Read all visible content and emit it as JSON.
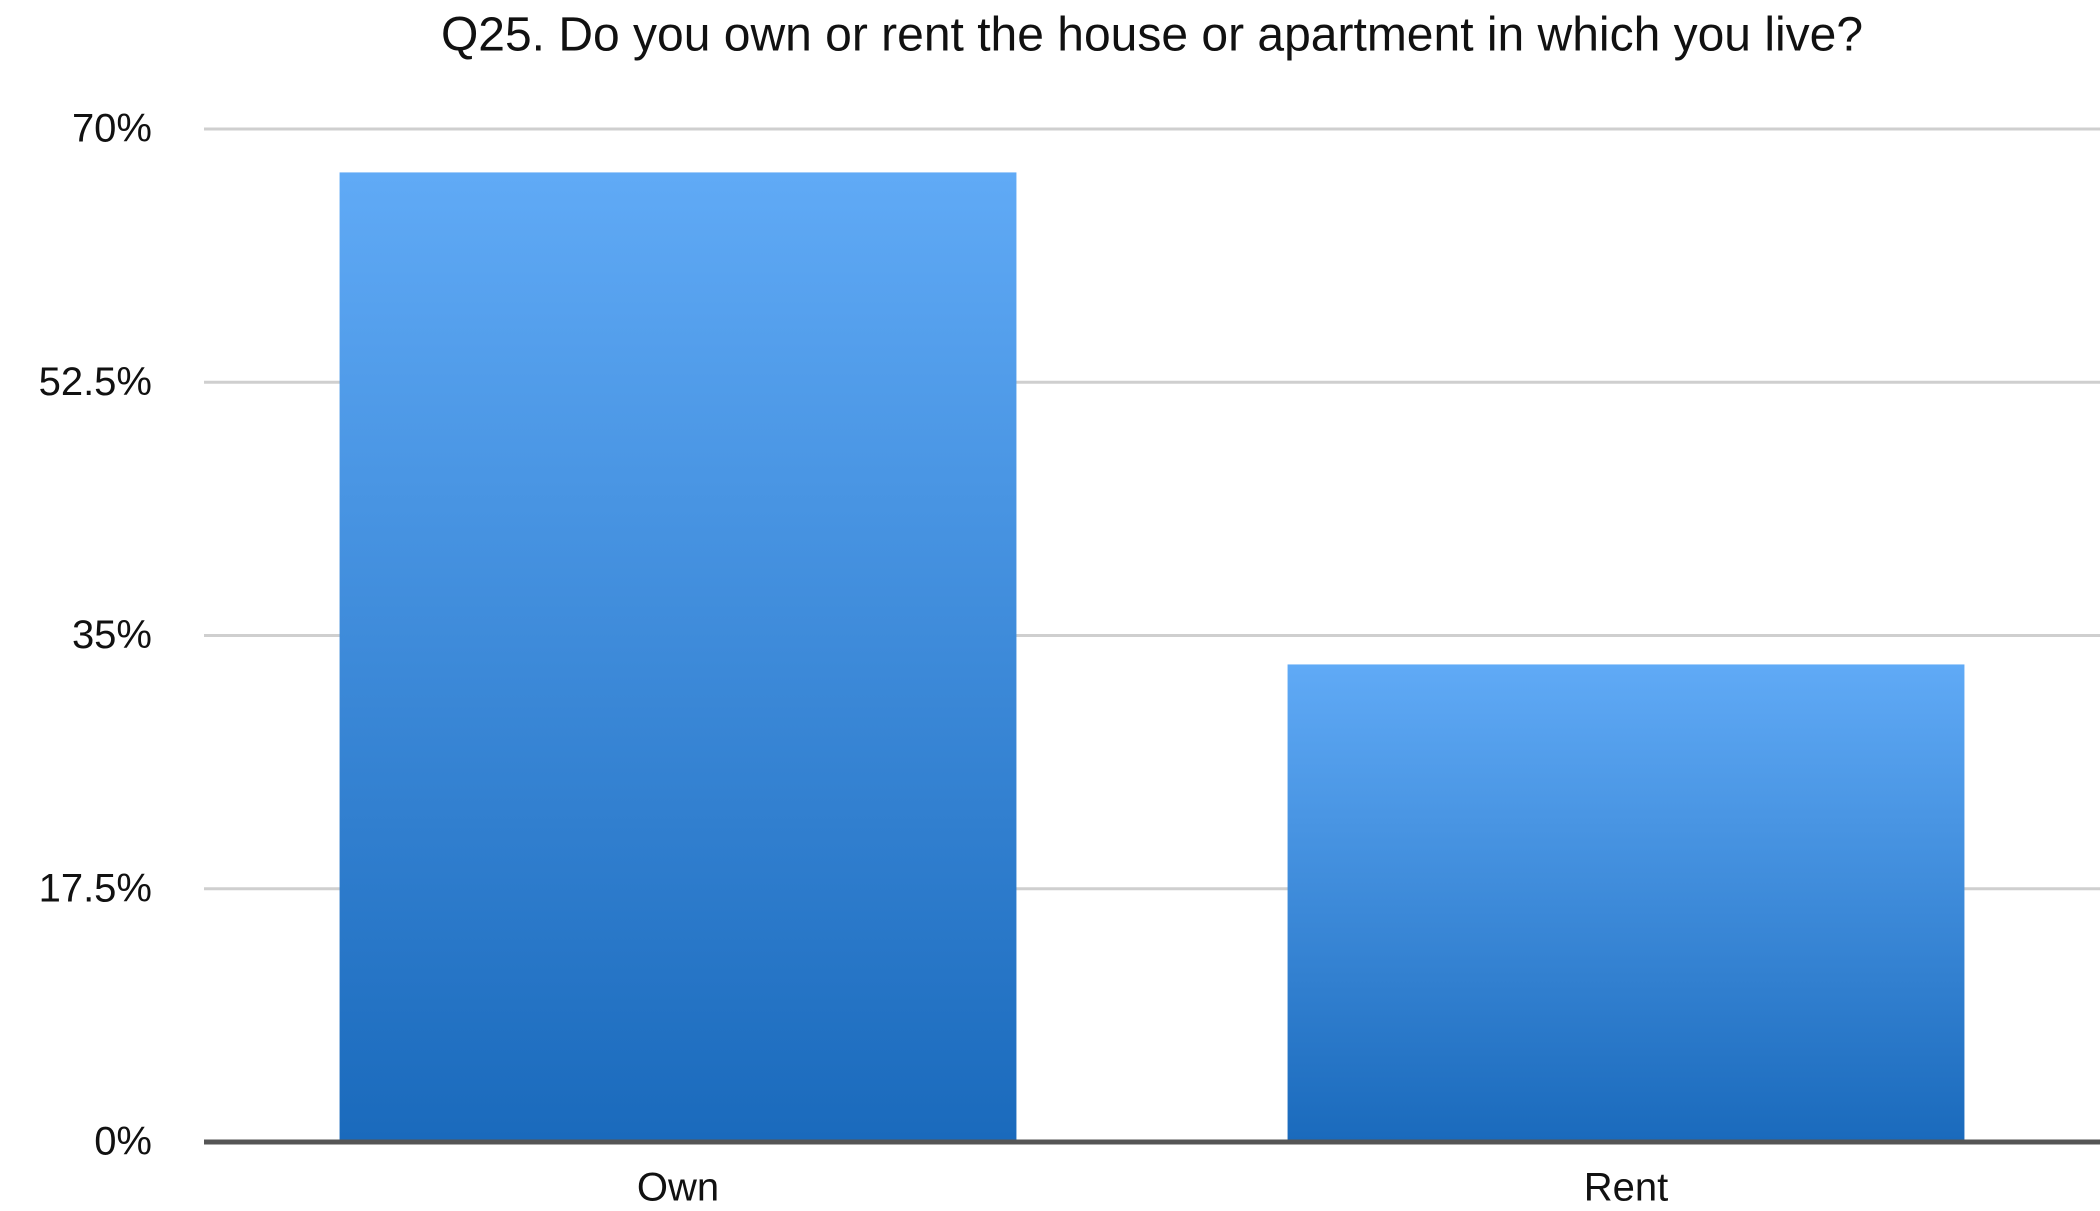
{
  "chart_data": {
    "type": "bar",
    "title": "Q25. Do you own or rent the house or apartment in which you live?",
    "categories": [
      "Own",
      "Rent"
    ],
    "values": [
      67,
      33
    ],
    "gradient": [
      "#60aaf6",
      "#1a6abc"
    ],
    "ylim": [
      0,
      70
    ],
    "yticks": [
      {
        "value": 0,
        "label": "0%"
      },
      {
        "value": 17.5,
        "label": "17.5%"
      },
      {
        "value": 35,
        "label": "35%"
      },
      {
        "value": 52.5,
        "label": "52.5%"
      },
      {
        "value": 70,
        "label": "70%"
      }
    ],
    "grid": true
  }
}
